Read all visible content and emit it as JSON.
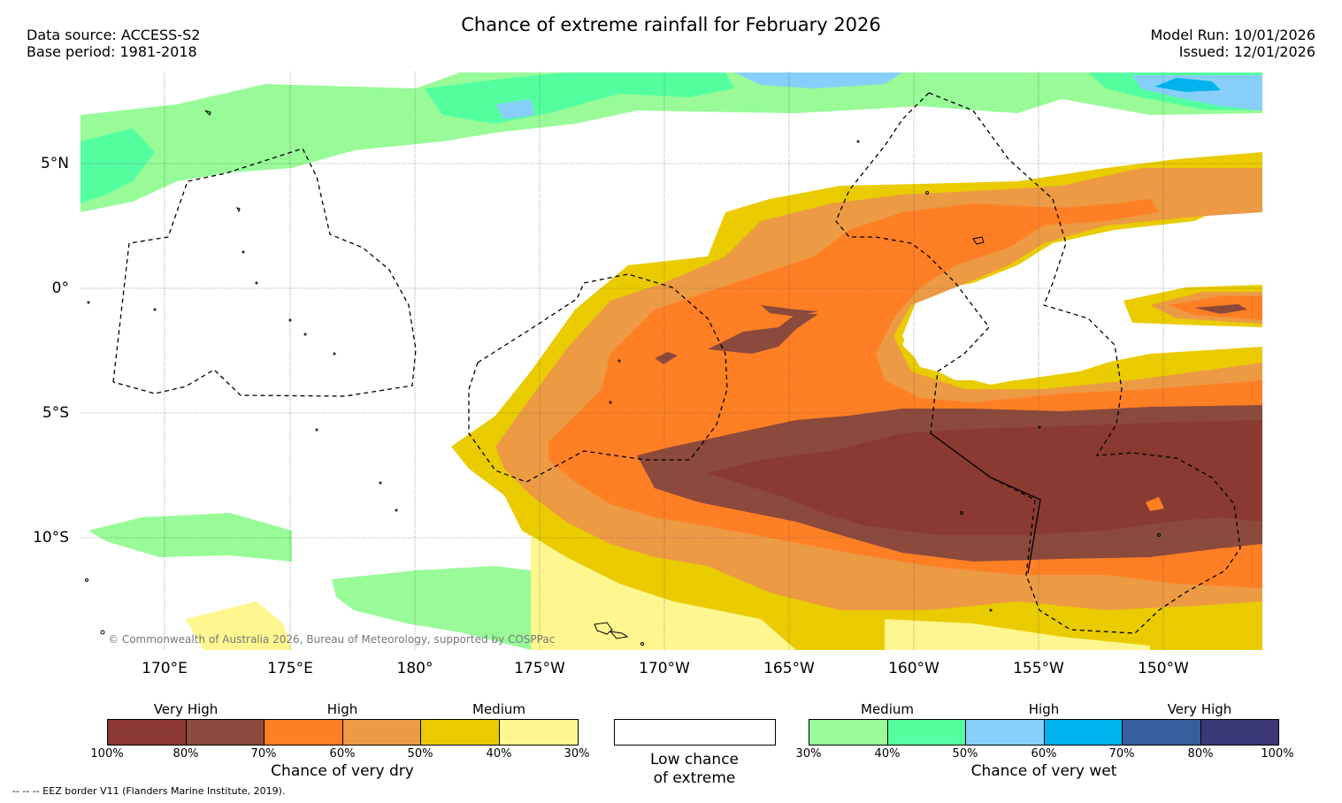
{
  "title": "Chance of extreme rainfall for February 2026",
  "header": {
    "data_source": "Data source: ACCESS-S2",
    "base_period": "Base period: 1981-2018",
    "model_run": "Model Run: 10/01/2026",
    "issued": "Issued: 12/01/2026"
  },
  "map": {
    "lat_labels": [
      "5°N",
      "0°",
      "5°S",
      "10°S"
    ],
    "lon_labels": [
      "170°E",
      "175°E",
      "180°",
      "175°W",
      "170°W",
      "165°W",
      "160°W",
      "155°W",
      "150°W"
    ],
    "copyright": "© Commonwealth of Australia 2026, Bureau of Meteorology, supported by COSPPac"
  },
  "legend": {
    "dry": {
      "categories": [
        "Very High",
        "High",
        "Medium"
      ],
      "ticks": [
        "100%",
        "80%",
        "70%",
        "60%",
        "50%",
        "40%",
        "30%"
      ],
      "colors": [
        "#8b3a31",
        "#8b4a3b",
        "#ff7f24",
        "#ec9a44",
        "#eacb00",
        "#fff68f"
      ],
      "title": "Chance of very dry"
    },
    "neutral": {
      "title_line1": "Low chance",
      "title_line2": "of extreme",
      "color": "#ffffff"
    },
    "wet": {
      "categories": [
        "Medium",
        "High",
        "Very High"
      ],
      "ticks": [
        "30%",
        "40%",
        "50%",
        "60%",
        "70%",
        "80%",
        "100%"
      ],
      "colors": [
        "#98fb98",
        "#54ff9f",
        "#87cefa",
        "#00b2ee",
        "#365f9c",
        "#3b3878"
      ],
      "title": "Chance of very wet"
    },
    "eez_note": "--  --  -- EEZ border V11 (Flanders Marine Institute, 2019)."
  }
}
